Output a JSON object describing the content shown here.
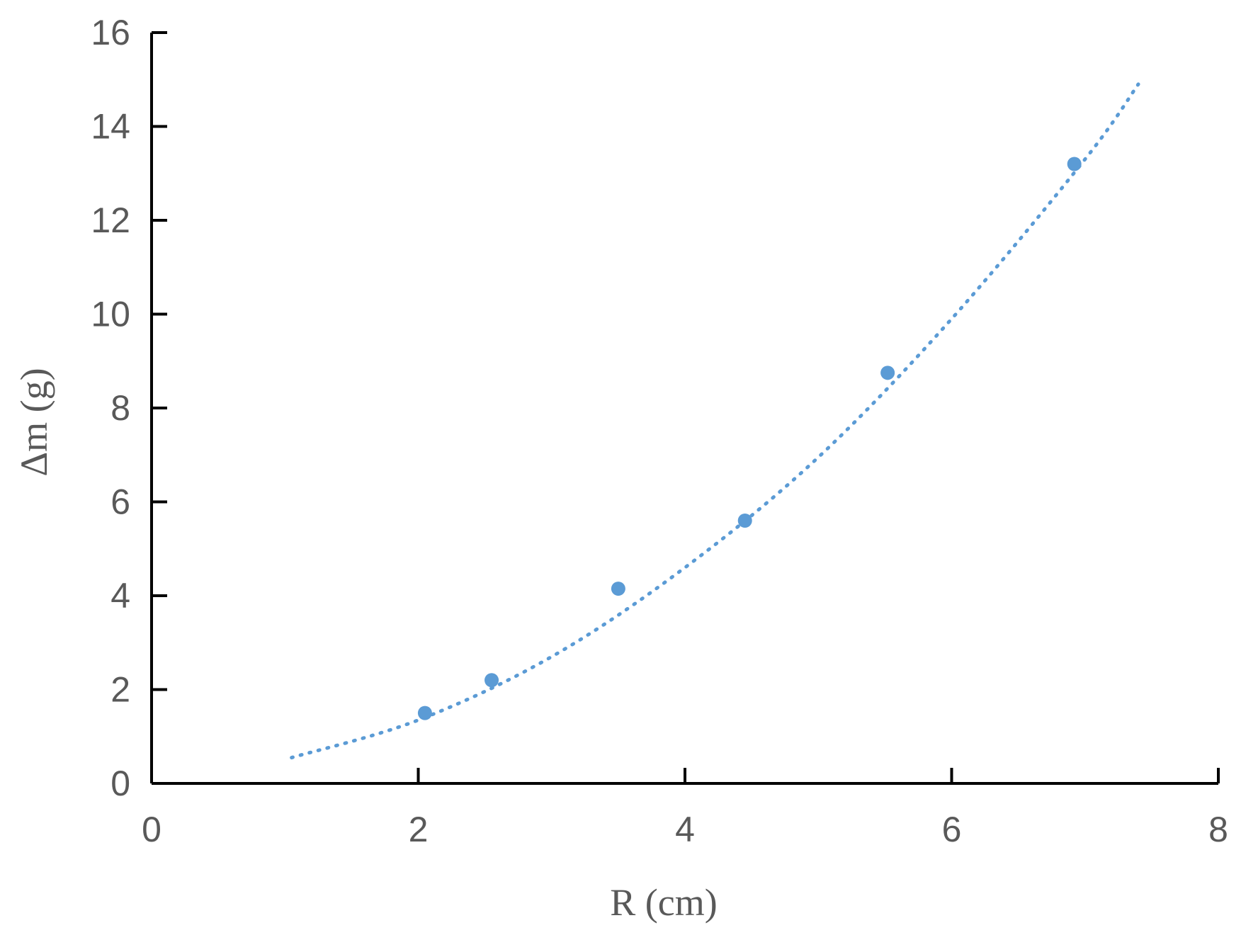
{
  "chart_data": {
    "type": "scatter",
    "title": "",
    "xlabel": "R (cm)",
    "ylabel": "Δm (g)",
    "xlim": [
      0,
      8
    ],
    "ylim": [
      0,
      16
    ],
    "xticks": [
      0,
      2,
      4,
      6,
      8
    ],
    "yticks": [
      0,
      2,
      4,
      6,
      8,
      10,
      12,
      14,
      16
    ],
    "grid": false,
    "legend": "none",
    "series": [
      {
        "points": [
          {
            "x": 2.05,
            "y": 1.5
          },
          {
            "x": 2.55,
            "y": 2.2
          },
          {
            "x": 3.5,
            "y": 4.15
          },
          {
            "x": 4.45,
            "y": 5.6
          },
          {
            "x": 5.52,
            "y": 8.75
          },
          {
            "x": 6.92,
            "y": 13.2
          }
        ],
        "color": "#5b9bd5"
      }
    ],
    "trendline": {
      "type": "polynomial",
      "style": "dotted",
      "color": "#5b9bd5",
      "x_range": [
        1.05,
        7.4
      ],
      "points": [
        {
          "x": 1.05,
          "y": 0.55
        },
        {
          "x": 2.0,
          "y": 1.35
        },
        {
          "x": 3.0,
          "y": 2.7
        },
        {
          "x": 4.0,
          "y": 4.6
        },
        {
          "x": 5.0,
          "y": 6.95
        },
        {
          "x": 6.0,
          "y": 9.9
        },
        {
          "x": 7.0,
          "y": 13.3
        },
        {
          "x": 7.4,
          "y": 14.9
        }
      ]
    }
  }
}
